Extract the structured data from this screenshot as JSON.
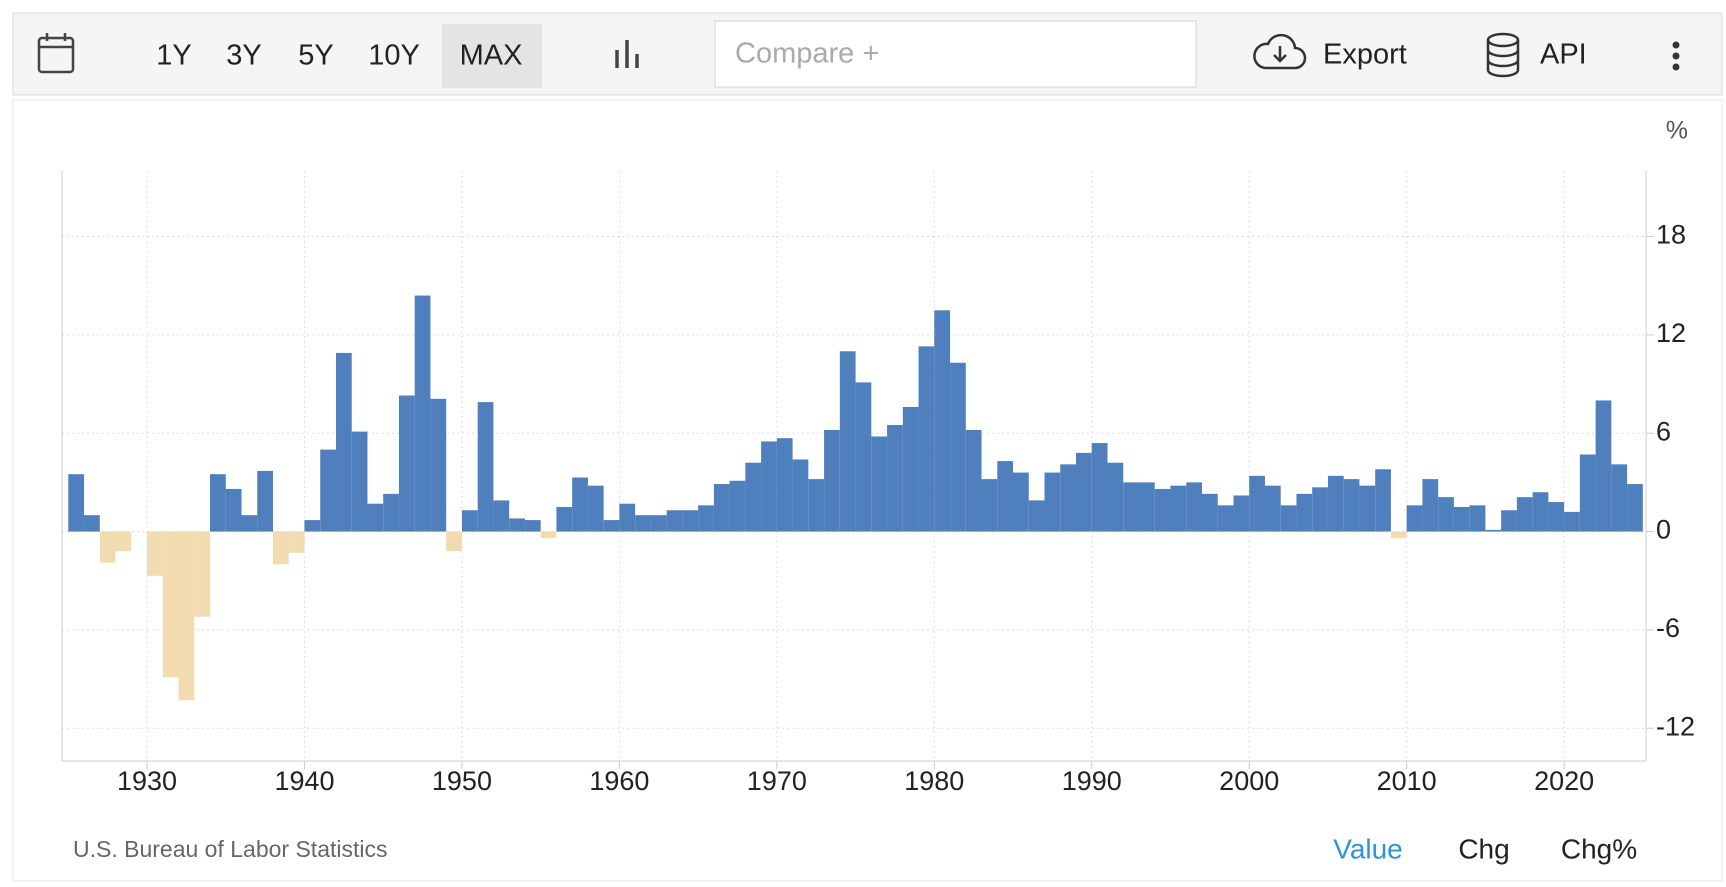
{
  "toolbar": {
    "ranges": [
      "1Y",
      "3Y",
      "5Y",
      "10Y",
      "MAX"
    ],
    "compare_placeholder": "Compare +",
    "export": "Export",
    "api": "API"
  },
  "chart_data": {
    "type": "bar",
    "unit": "%",
    "source": "U.S. Bureau of Labor Statistics",
    "x": [
      1925,
      1926,
      1927,
      1928,
      1929,
      1930,
      1931,
      1932,
      1933,
      1934,
      1935,
      1936,
      1937,
      1938,
      1939,
      1940,
      1941,
      1942,
      1943,
      1944,
      1945,
      1946,
      1947,
      1948,
      1949,
      1950,
      1951,
      1952,
      1953,
      1954,
      1955,
      1956,
      1957,
      1958,
      1959,
      1960,
      1961,
      1962,
      1963,
      1964,
      1965,
      1966,
      1967,
      1968,
      1969,
      1970,
      1971,
      1972,
      1973,
      1974,
      1975,
      1976,
      1977,
      1978,
      1979,
      1980,
      1981,
      1982,
      1983,
      1984,
      1985,
      1986,
      1987,
      1988,
      1989,
      1990,
      1991,
      1992,
      1993,
      1994,
      1995,
      1996,
      1997,
      1998,
      1999,
      2000,
      2001,
      2002,
      2003,
      2004,
      2005,
      2006,
      2007,
      2008,
      2009,
      2010,
      2011,
      2012,
      2013,
      2014,
      2015,
      2016,
      2017,
      2018,
      2019,
      2020,
      2021,
      2022,
      2023,
      2024
    ],
    "values": [
      3.5,
      1.0,
      -1.9,
      -1.2,
      0.0,
      -2.7,
      -8.9,
      -10.3,
      -5.2,
      3.5,
      2.6,
      1.0,
      3.7,
      -2.0,
      -1.3,
      0.7,
      5.0,
      10.9,
      6.1,
      1.7,
      2.3,
      8.3,
      14.4,
      8.1,
      -1.2,
      1.3,
      7.9,
      1.9,
      0.8,
      0.7,
      -0.4,
      1.5,
      3.3,
      2.8,
      0.7,
      1.7,
      1.0,
      1.0,
      1.3,
      1.3,
      1.6,
      2.9,
      3.1,
      4.2,
      5.5,
      5.7,
      4.4,
      3.2,
      6.2,
      11.0,
      9.1,
      5.8,
      6.5,
      7.6,
      11.3,
      13.5,
      10.3,
      6.2,
      3.2,
      4.3,
      3.6,
      1.9,
      3.6,
      4.1,
      4.8,
      5.4,
      4.2,
      3.0,
      3.0,
      2.6,
      2.8,
      3.0,
      2.3,
      1.6,
      2.2,
      3.4,
      2.8,
      1.6,
      2.3,
      2.7,
      3.4,
      3.2,
      2.8,
      3.8,
      -0.4,
      1.6,
      3.2,
      2.1,
      1.5,
      1.6,
      0.1,
      1.3,
      2.1,
      2.4,
      1.8,
      1.2,
      4.7,
      8.0,
      4.1,
      2.9
    ],
    "positive_color": "#4f7fbd",
    "negative_color": "#f0dcb0",
    "xlim": [
      1924.6,
      2025.2
    ],
    "xticks": [
      1930,
      1940,
      1950,
      1960,
      1970,
      1980,
      1990,
      2000,
      2010,
      2020
    ],
    "ylim": [
      -14,
      22
    ],
    "yticks": [
      -12,
      -6,
      0,
      6,
      12,
      18
    ],
    "grid": true
  },
  "footer": {
    "modes": [
      "Value",
      "Chg",
      "Chg%"
    ]
  }
}
